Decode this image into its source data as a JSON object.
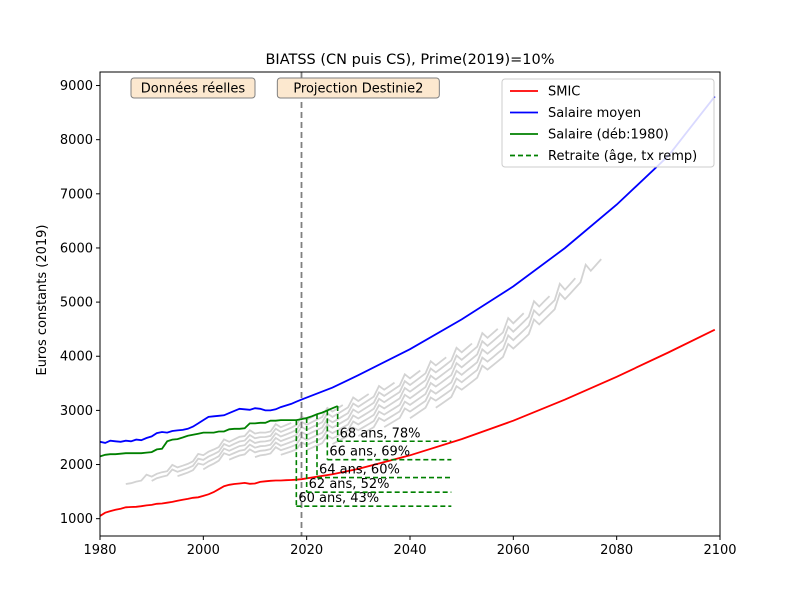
{
  "chart_data": {
    "type": "line",
    "title": "BIATSS (CN puis CS), Prime(2019)=10%",
    "xlabel": "",
    "ylabel": "Euros constants (2019)",
    "xlim": [
      1980,
      2100
    ],
    "ylim": [
      680,
      9250
    ],
    "x_ticks": [
      1980,
      2000,
      2020,
      2040,
      2060,
      2080,
      2100
    ],
    "y_ticks": [
      1000,
      2000,
      3000,
      4000,
      5000,
      6000,
      7000,
      8000,
      9000
    ],
    "grid": false,
    "legend_position": "top-right",
    "colors": {
      "smic": "#ff0000",
      "salaire_moyen": "#0000ff",
      "salaire_career": "#008000",
      "retraite": "#008000",
      "other_careers": "#d3d3d3",
      "divider": "#808080",
      "annotation_box_fill": "#fce8cf"
    },
    "divider_year": 2019,
    "annotations": [
      {
        "label": "Données réelles",
        "x": 1998
      },
      {
        "label": "Projection Destinie2",
        "x": 2030
      }
    ],
    "series": [
      {
        "name": "SMIC",
        "color": "#ff0000",
        "x": [
          1980,
          1981,
          1982,
          1983,
          1984,
          1985,
          1986,
          1987,
          1988,
          1989,
          1990,
          1991,
          1992,
          1993,
          1994,
          1995,
          1996,
          1997,
          1998,
          1999,
          2000,
          2001,
          2002,
          2003,
          2004,
          2005,
          2006,
          2007,
          2008,
          2009,
          2010,
          2011,
          2012,
          2013,
          2014,
          2015,
          2016,
          2017,
          2018,
          2019,
          2025,
          2030,
          2040,
          2050,
          2060,
          2070,
          2080,
          2090,
          2099
        ],
        "values": [
          1050,
          1110,
          1140,
          1165,
          1185,
          1210,
          1215,
          1220,
          1230,
          1245,
          1255,
          1275,
          1280,
          1295,
          1310,
          1330,
          1350,
          1365,
          1385,
          1395,
          1420,
          1450,
          1490,
          1545,
          1600,
          1625,
          1640,
          1650,
          1660,
          1645,
          1650,
          1680,
          1690,
          1700,
          1705,
          1705,
          1710,
          1715,
          1720,
          1730,
          1820,
          1920,
          2170,
          2470,
          2810,
          3200,
          3620,
          4070,
          4490
        ]
      },
      {
        "name": "Salaire moyen",
        "color": "#0000ff",
        "x": [
          1980,
          1981,
          1982,
          1983,
          1984,
          1985,
          1986,
          1987,
          1988,
          1989,
          1990,
          1991,
          1992,
          1993,
          1994,
          1995,
          1996,
          1997,
          1998,
          1999,
          2000,
          2001,
          2002,
          2003,
          2004,
          2005,
          2006,
          2007,
          2008,
          2009,
          2010,
          2011,
          2012,
          2013,
          2014,
          2015,
          2016,
          2017,
          2018,
          2019,
          2025,
          2030,
          2040,
          2050,
          2060,
          2070,
          2080,
          2090,
          2099
        ],
        "values": [
          2420,
          2400,
          2440,
          2430,
          2420,
          2440,
          2430,
          2460,
          2450,
          2490,
          2520,
          2580,
          2600,
          2590,
          2620,
          2630,
          2640,
          2660,
          2700,
          2760,
          2820,
          2880,
          2890,
          2900,
          2910,
          2950,
          2990,
          3030,
          3020,
          3010,
          3040,
          3030,
          3000,
          3000,
          3020,
          3060,
          3090,
          3120,
          3160,
          3200,
          3420,
          3650,
          4130,
          4680,
          5290,
          6000,
          6800,
          7700,
          8800
        ]
      },
      {
        "name": "Salaire (déb:1980)",
        "color": "#008000",
        "x": [
          1980,
          1981,
          1982,
          1983,
          1984,
          1985,
          1986,
          1987,
          1988,
          1989,
          1990,
          1991,
          1992,
          1993,
          1994,
          1995,
          1996,
          1997,
          1998,
          1999,
          2000,
          2001,
          2002,
          2003,
          2004,
          2005,
          2006,
          2007,
          2008,
          2009,
          2010,
          2011,
          2012,
          2013,
          2014,
          2015,
          2016,
          2017,
          2018,
          2019,
          2020,
          2021,
          2022,
          2023,
          2024,
          2025,
          2026
        ],
        "values": [
          2150,
          2180,
          2190,
          2190,
          2200,
          2210,
          2210,
          2210,
          2210,
          2220,
          2230,
          2280,
          2290,
          2430,
          2460,
          2470,
          2500,
          2530,
          2550,
          2570,
          2590,
          2590,
          2590,
          2610,
          2610,
          2650,
          2660,
          2660,
          2670,
          2760,
          2760,
          2770,
          2770,
          2810,
          2810,
          2820,
          2820,
          2820,
          2820,
          2840,
          2860,
          2890,
          2930,
          2960,
          3000,
          3040,
          3080
        ]
      }
    ],
    "other_careers_start_years": [
      1985,
      1990,
      1995,
      2000,
      2005,
      2010,
      2015,
      2020,
      2025,
      2030,
      2035,
      2040,
      2045
    ],
    "retirement": {
      "name": "Retraite (âge, tx remp)",
      "color": "#008000",
      "end_year": 2048,
      "items": [
        {
          "label": "60 ans, 43%",
          "year": 2018,
          "value": 1230
        },
        {
          "label": "62 ans, 52%",
          "year": 2020,
          "value": 1490
        },
        {
          "label": "64 ans, 60%",
          "year": 2022,
          "value": 1760
        },
        {
          "label": "66 ans, 69%",
          "year": 2024,
          "value": 2090
        },
        {
          "label": "68 ans, 78%",
          "year": 2026,
          "value": 2430
        }
      ]
    }
  }
}
